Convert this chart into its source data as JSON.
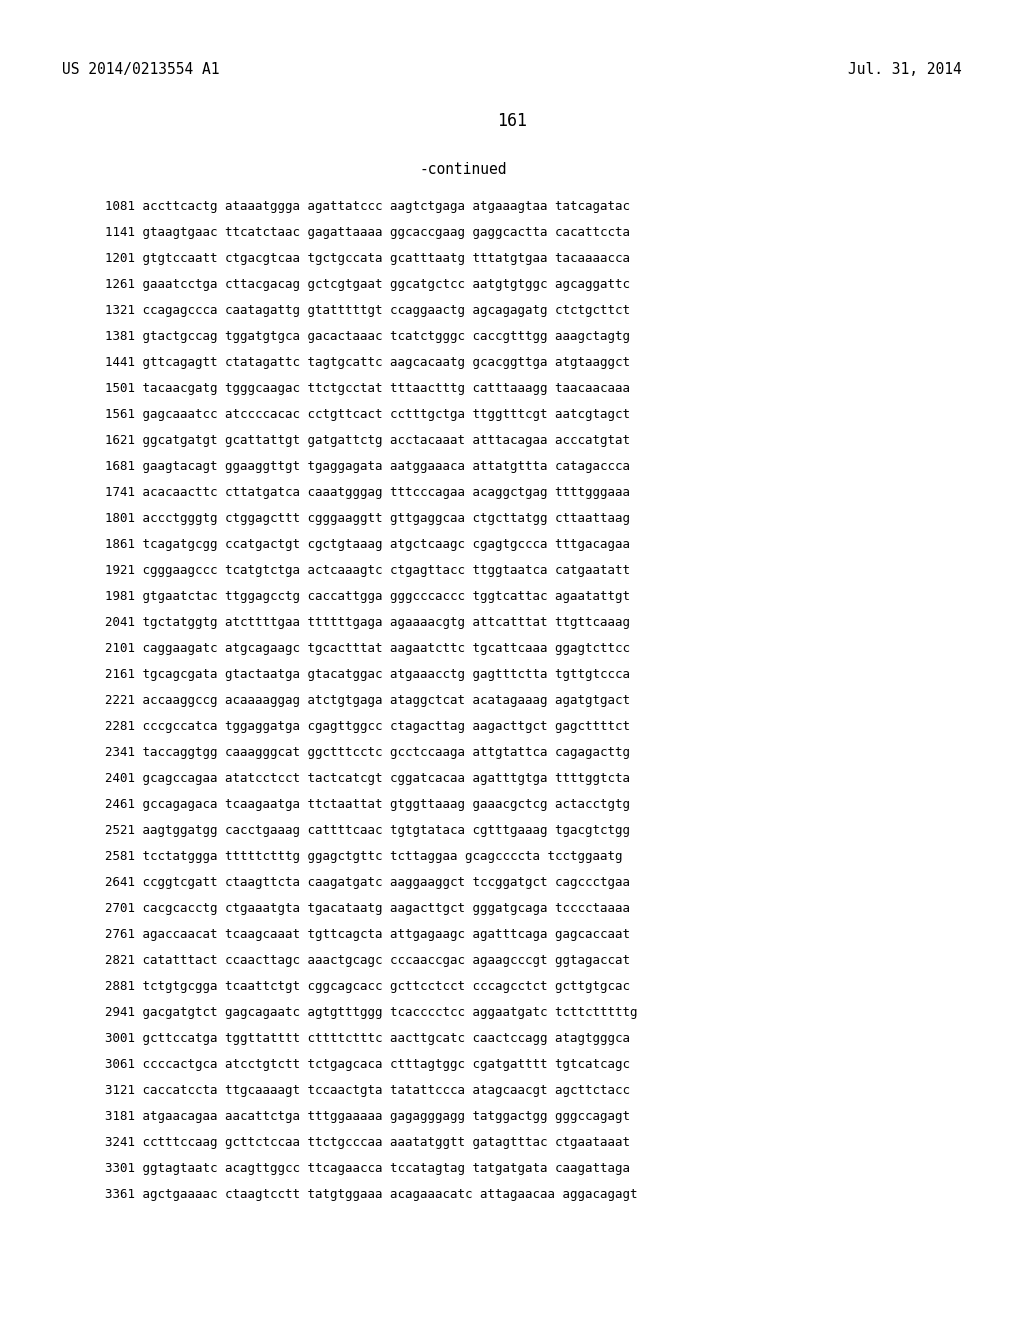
{
  "header_left": "US 2014/0213554 A1",
  "header_right": "Jul. 31, 2014",
  "page_number": "161",
  "continued_label": "-continued",
  "background_color": "#ffffff",
  "text_color": "#000000",
  "font_size_header": 10.5,
  "font_size_page": 12,
  "font_size_continued": 10.5,
  "font_size_sequence": 9.0,
  "sequence_lines": [
    "1081 accttcactg ataaatggga agattatccc aagtctgaga atgaaagtaa tatcagatac",
    "1141 gtaagtgaac ttcatctaac gagattaaaa ggcaccgaag gaggcactta cacattccta",
    "1201 gtgtccaatt ctgacgtcaa tgctgccata gcatttaatg tttatgtgaa tacaaaacca",
    "1261 gaaatcctga cttacgacag gctcgtgaat ggcatgctcc aatgtgtggc agcaggattc",
    "1321 ccagagccca caatagattg gtatttttgt ccaggaactg agcagagatg ctctgcttct",
    "1381 gtactgccag tggatgtgca gacactaaac tcatctgggc caccgtttgg aaagctagtg",
    "1441 gttcagagtt ctatagattc tagtgcattc aagcacaatg gcacggttga atgtaaggct",
    "1501 tacaacgatg tgggcaagac ttctgcctat tttaactttg catttaaagg taacaacaaa",
    "1561 gagcaaatcc atccccacac cctgttcact cctttgctga ttggtttcgt aatcgtagct",
    "1621 ggcatgatgt gcattattgt gatgattctg acctacaaat atttacagaa acccatgtat",
    "1681 gaagtacagt ggaaggttgt tgaggagata aatggaaaca attatgttta catagaccca",
    "1741 acacaacttc cttatgatca caaatgggag tttcccagaa acaggctgag ttttgggaaa",
    "1801 accctgggtg ctggagcttt cgggaaggtt gttgaggcaa ctgcttatgg cttaattaag",
    "1861 tcagatgcgg ccatgactgt cgctgtaaag atgctcaagc cgagtgccca tttgacagaa",
    "1921 cgggaagccc tcatgtctga actcaaagtc ctgagttacc ttggtaatca catgaatatt",
    "1981 gtgaatctac ttggagcctg caccattgga gggcccaccc tggtcattac agaatattgt",
    "2041 tgctatggtg atcttttgaa ttttttgaga agaaaacgtg attcatttat ttgttcaaag",
    "2101 caggaagatc atgcagaagc tgcactttat aagaatcttc tgcattcaaa ggagtcttcc",
    "2161 tgcagcgata gtactaatga gtacatggac atgaaacctg gagtttctta tgttgtccca",
    "2221 accaaggccg acaaaaggag atctgtgaga ataggctcat acatagaaag agatgtgact",
    "2281 cccgccatca tggaggatga cgagttggcc ctagacttag aagacttgct gagcttttct",
    "2341 taccaggtgg caaagggcat ggctttcctc gcctccaaga attgtattca cagagacttg",
    "2401 gcagccagaa atatcctcct tactcatcgt cggatcacaa agatttgtga ttttggtcta",
    "2461 gccagagaca tcaagaatga ttctaattat gtggttaaag gaaacgctcg actacctgtg",
    "2521 aagtggatgg cacctgaaag cattttcaac tgtgtataca cgtttgaaag tgacgtctgg",
    "2581 tcctatggga tttttctttg ggagctgttc tcttaggaa gcagccccta tcctggaatg",
    "2641 ccggtcgatt ctaagttcta caagatgatc aaggaaggct tccggatgct cagccctgaa",
    "2701 cacgcacctg ctgaaatgta tgacataatg aagacttgct gggatgcaga tcccctaaaa",
    "2761 agaccaacat tcaagcaaat tgttcagcta attgagaagc agatttcaga gagcaccaat",
    "2821 catatttact ccaacttagc aaactgcagc cccaaccgac agaagcccgt ggtagaccat",
    "2881 tctgtgcgga tcaattctgt cggcagcacc gcttcctcct cccagcctct gcttgtgcac",
    "2941 gacgatgtct gagcagaatc agtgtttggg tcacccctcc aggaatgatc tcttctttttg",
    "3001 gcttccatga tggttatttt cttttctttc aacttgcatc caactccagg atagtgggca",
    "3061 ccccactgca atcctgtctt tctgagcaca ctttagtggc cgatgatttt tgtcatcagc",
    "3121 caccatccta ttgcaaaagt tccaactgta tatattccca atagcaacgt agcttctacc",
    "3181 atgaacagaa aacattctga tttggaaaaa gagagggagg tatggactgg gggccagagt",
    "3241 cctttccaag gcttctccaa ttctgcccaa aaatatggtt gatagtttac ctgaataaat",
    "3301 ggtagtaatc acagttggcc ttcagaacca tccatagtag tatgatgata caagattaga",
    "3361 agctgaaaac ctaagtcctt tatgtggaaa acagaaacatc attagaacaa aggacagagt"
  ]
}
